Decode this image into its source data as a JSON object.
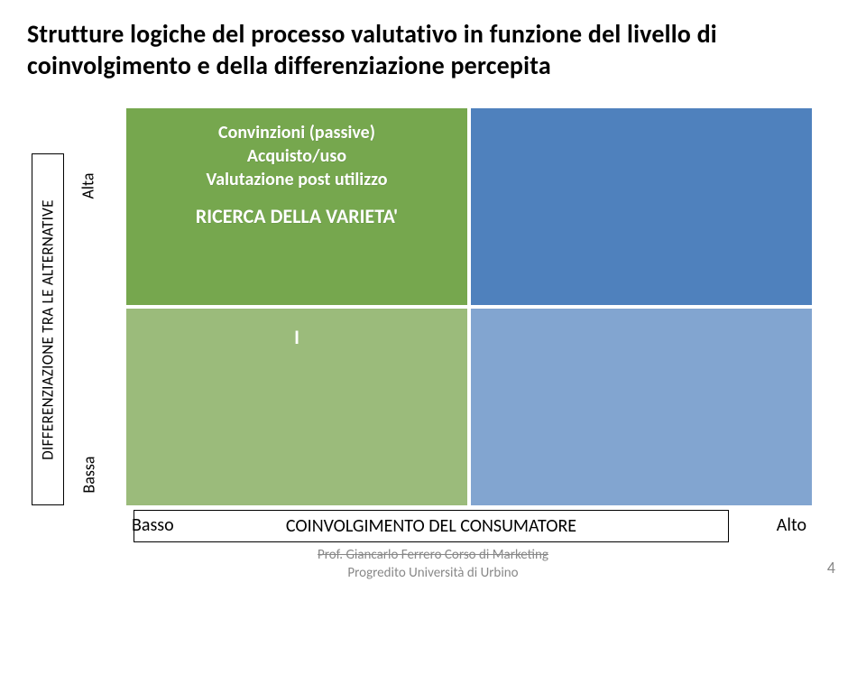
{
  "title": "Strutture logiche del processo valutativo in funzione del livello di coinvolgimento e della differenziazione percepita",
  "y_axis": {
    "label": "DIFFERENZIAZIONE TRA LE ALTERNATIVE",
    "tick_high": "Alta",
    "tick_low": "Bassa"
  },
  "x_axis": {
    "label": "COINVOLGIMENTO DEL CONSUMATORE",
    "tick_low": "Basso",
    "tick_high": "Alto"
  },
  "matrix": {
    "colors": {
      "tl": "#76a74e",
      "tr": "#4f81bd",
      "bl": "#9bbb7b",
      "br": "#82a5d0"
    },
    "tl": {
      "line1": "Convinzioni (passive)",
      "line2": "Acquisto/uso",
      "line3": "Valutazione post utilizzo",
      "emph": "RICERCA DELLA VARIETA'"
    },
    "bl": {
      "mark": "I"
    }
  },
  "footer": {
    "line1": "Prof. Giancarlo Ferrero  Corso di Marketing",
    "line2": "Progredito  Università di Urbino"
  },
  "page_number": "4"
}
